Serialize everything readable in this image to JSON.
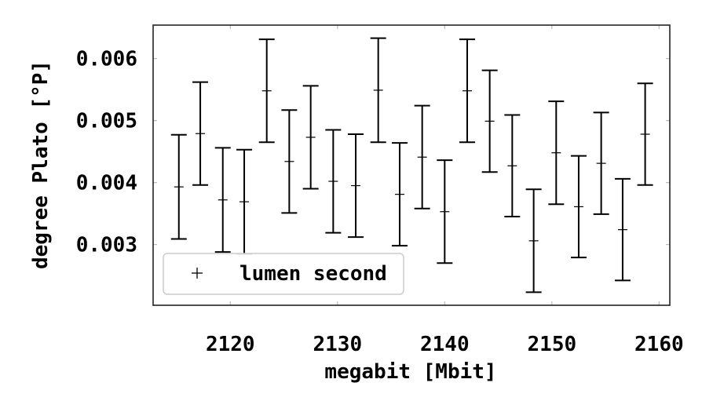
{
  "chart_data": {
    "type": "scatter",
    "xlabel": "megabit [Mbit]",
    "ylabel": "degree Plato [°P]",
    "xlim": [
      2112.8,
      2161.0
    ],
    "ylim": [
      0.00202,
      0.00654
    ],
    "xticks": [
      2120,
      2130,
      2140,
      2150,
      2160
    ],
    "yticks": [
      0.003,
      0.004,
      0.005,
      0.006
    ],
    "xtick_labels": [
      "2120",
      "2130",
      "2140",
      "2150",
      "2160"
    ],
    "ytick_labels": [
      "0.003",
      "0.004",
      "0.005",
      "0.006"
    ],
    "grid": false,
    "legend": {
      "position": "lower-left",
      "marker": "+",
      "frame": true
    },
    "series": [
      {
        "name": "lumen second",
        "color": "#000000",
        "marker": "+",
        "x": [
          2115.2,
          2117.2,
          2119.3,
          2121.3,
          2123.4,
          2125.5,
          2127.5,
          2129.6,
          2131.7,
          2133.8,
          2135.8,
          2137.9,
          2140.0,
          2142.1,
          2144.2,
          2146.3,
          2148.3,
          2150.4,
          2152.5,
          2154.6,
          2156.6,
          2158.7
        ],
        "y": [
          0.00393,
          0.00479,
          0.00372,
          0.00369,
          0.00548,
          0.00434,
          0.00473,
          0.00402,
          0.00395,
          0.00549,
          0.00381,
          0.00441,
          0.00353,
          0.00548,
          0.00499,
          0.00427,
          0.00306,
          0.00448,
          0.00361,
          0.00431,
          0.00324,
          0.00478
        ],
        "yerr": [
          0.00084,
          0.00083,
          0.00084,
          0.00084,
          0.00083,
          0.00083,
          0.00083,
          0.00083,
          0.00083,
          0.00084,
          0.00083,
          0.00083,
          0.00083,
          0.00083,
          0.00082,
          0.00082,
          0.00083,
          0.00083,
          0.00082,
          0.00082,
          0.00082,
          0.00082
        ]
      }
    ]
  }
}
